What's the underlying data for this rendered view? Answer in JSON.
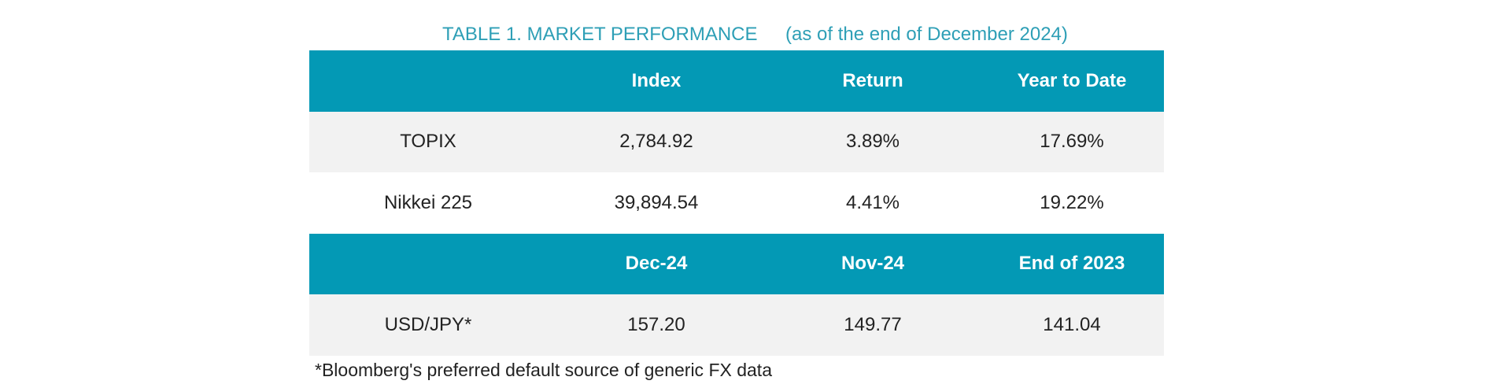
{
  "title": "TABLE 1. MARKET PERFORMANCE",
  "subtitle": "(as of the end of December 2024)",
  "sections": [
    {
      "header": [
        "Index",
        "Return",
        "Year to Date"
      ],
      "rows": [
        [
          "TOPIX",
          "2,784.92",
          "3.89%",
          "17.69%"
        ],
        [
          "Nikkei 225",
          "39,894.54",
          "4.41%",
          "19.22%"
        ]
      ]
    },
    {
      "header": [
        "Dec-24",
        "Nov-24",
        "End of 2023"
      ],
      "rows": [
        [
          "USD/JPY*",
          "157.20",
          "149.77",
          "141.04"
        ]
      ]
    }
  ],
  "footnote": "*Bloomberg's preferred default source of generic FX data"
}
